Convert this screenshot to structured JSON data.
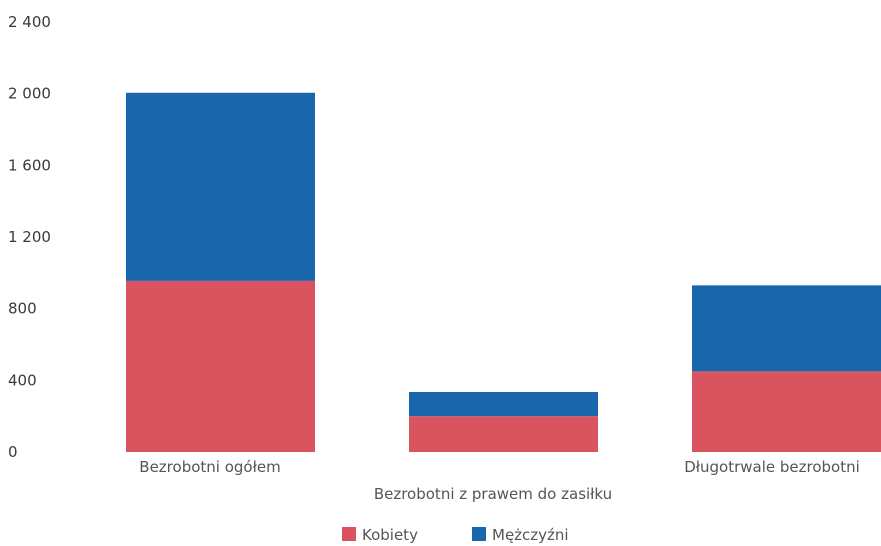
{
  "chart_data": {
    "type": "bar",
    "stacked": true,
    "categories": [
      "Bezrobotni ogółem",
      "Bezrobotni z prawem do zasiłku",
      "Długotrwale bezrobotni"
    ],
    "series": [
      {
        "name": "Kobiety",
        "values": [
          955,
          200,
          450
        ],
        "color": "#d9545f"
      },
      {
        "name": "Mężczyźni",
        "values": [
          1050,
          135,
          480
        ],
        "color": "#1a66ad"
      }
    ],
    "ylim": [
      0,
      2400
    ],
    "yticks": [
      {
        "value": 0,
        "label": "0"
      },
      {
        "value": 400,
        "label": "400"
      },
      {
        "value": 800,
        "label": "800"
      },
      {
        "value": 1200,
        "label": "1 200"
      },
      {
        "value": 1600,
        "label": "1 600"
      },
      {
        "value": 2000,
        "label": "2 000"
      },
      {
        "value": 2400,
        "label": "2 400"
      }
    ],
    "grid": false,
    "legend_position": "bottom-center"
  }
}
